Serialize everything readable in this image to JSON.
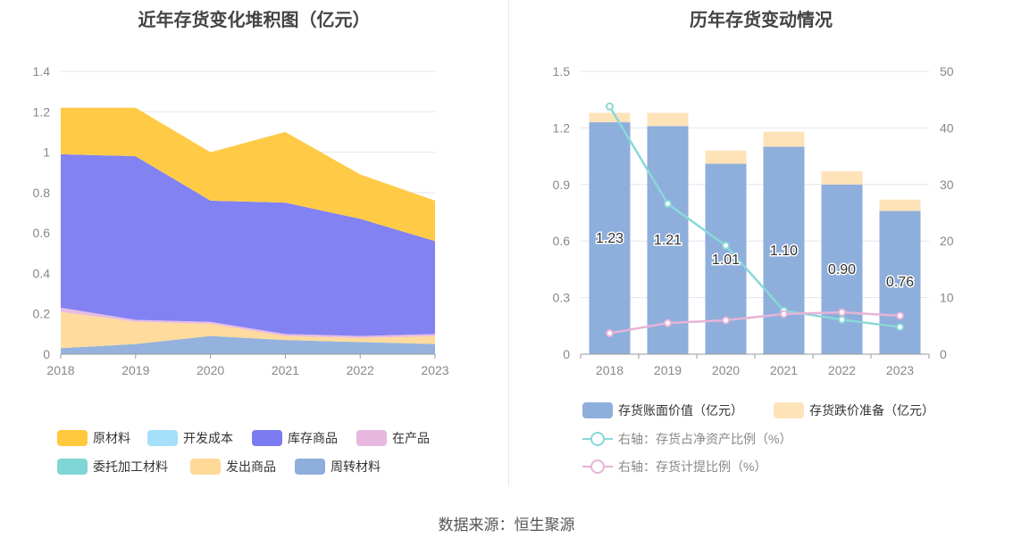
{
  "footer": "数据来源：恒生聚源",
  "chart_data": [
    {
      "type": "area",
      "title": "近年存货变化堆积图（亿元）",
      "categories": [
        "2018",
        "2019",
        "2020",
        "2021",
        "2022",
        "2023"
      ],
      "ylim": [
        0,
        1.4
      ],
      "yticks": [
        "0",
        "0.2",
        "0.4",
        "0.6",
        "0.8",
        "1",
        "1.2",
        "1.4"
      ],
      "grid": true,
      "legend_position": "bottom",
      "series": [
        {
          "name": "周转材料",
          "color": "#8eaedb",
          "values": [
            0.03,
            0.05,
            0.09,
            0.07,
            0.06,
            0.05
          ]
        },
        {
          "name": "发出商品",
          "color": "#ffd998",
          "values": [
            0.18,
            0.11,
            0.06,
            0.02,
            0.02,
            0.04
          ]
        },
        {
          "name": "委托加工材料",
          "color": "#80d6d6",
          "values": [
            0,
            0,
            0,
            0,
            0,
            0
          ]
        },
        {
          "name": "在产品",
          "color": "#e6b8df",
          "values": [
            0.02,
            0.01,
            0.01,
            0.01,
            0.01,
            0.01
          ]
        },
        {
          "name": "库存商品",
          "color": "#7b7bf2",
          "values": [
            0.76,
            0.81,
            0.6,
            0.65,
            0.58,
            0.46
          ]
        },
        {
          "name": "开发成本",
          "color": "#a6dff9",
          "values": [
            0,
            0,
            0,
            0,
            0,
            0
          ]
        },
        {
          "name": "原材料",
          "color": "#ffc83d",
          "values": [
            0.23,
            0.24,
            0.24,
            0.35,
            0.22,
            0.2
          ]
        }
      ],
      "legend": [
        {
          "name": "原材料",
          "color": "#ffc83d"
        },
        {
          "name": "开发成本",
          "color": "#a6dff9"
        },
        {
          "name": "库存商品",
          "color": "#7b7bf2"
        },
        {
          "name": "在产品",
          "color": "#e6b8df"
        },
        {
          "name": "委托加工材料",
          "color": "#80d6d6"
        },
        {
          "name": "发出商品",
          "color": "#ffd998"
        },
        {
          "name": "周转材料",
          "color": "#8eaedb"
        }
      ]
    },
    {
      "type": "bar",
      "title": "历年存货变动情况",
      "categories": [
        "2018",
        "2019",
        "2020",
        "2021",
        "2022",
        "2023"
      ],
      "ylim": [
        0,
        1.5
      ],
      "yticks": [
        "0",
        "0.3",
        "0.6",
        "0.9",
        "1.2",
        "1.5"
      ],
      "y2lim": [
        0,
        50
      ],
      "y2ticks": [
        "0",
        "10",
        "20",
        "30",
        "40",
        "50"
      ],
      "grid": true,
      "legend_position": "bottom",
      "series": [
        {
          "name": "存货账面价值（亿元）",
          "kind": "bar",
          "axis": "left",
          "color": "#8eaedb",
          "values": [
            1.23,
            1.21,
            1.01,
            1.1,
            0.9,
            0.76
          ],
          "labels": [
            "1.23",
            "1.21",
            "1.01",
            "1.10",
            "0.90",
            "0.76"
          ]
        },
        {
          "name": "存货跌价准备（亿元）",
          "kind": "bar",
          "axis": "left",
          "color": "#ffe3b8",
          "values": [
            0.05,
            0.07,
            0.07,
            0.08,
            0.07,
            0.06
          ]
        },
        {
          "name": "右轴：存货占净资产比例（%）",
          "kind": "line",
          "axis": "right",
          "color": "#8ad8d8",
          "values": [
            43.8,
            26.6,
            19.2,
            7.7,
            6.1,
            4.8
          ]
        },
        {
          "name": "右轴：存货计提比例（%）",
          "kind": "line",
          "axis": "right",
          "color": "#e8b3d8",
          "values": [
            3.7,
            5.5,
            6.0,
            7.1,
            7.4,
            6.8
          ]
        }
      ]
    }
  ]
}
